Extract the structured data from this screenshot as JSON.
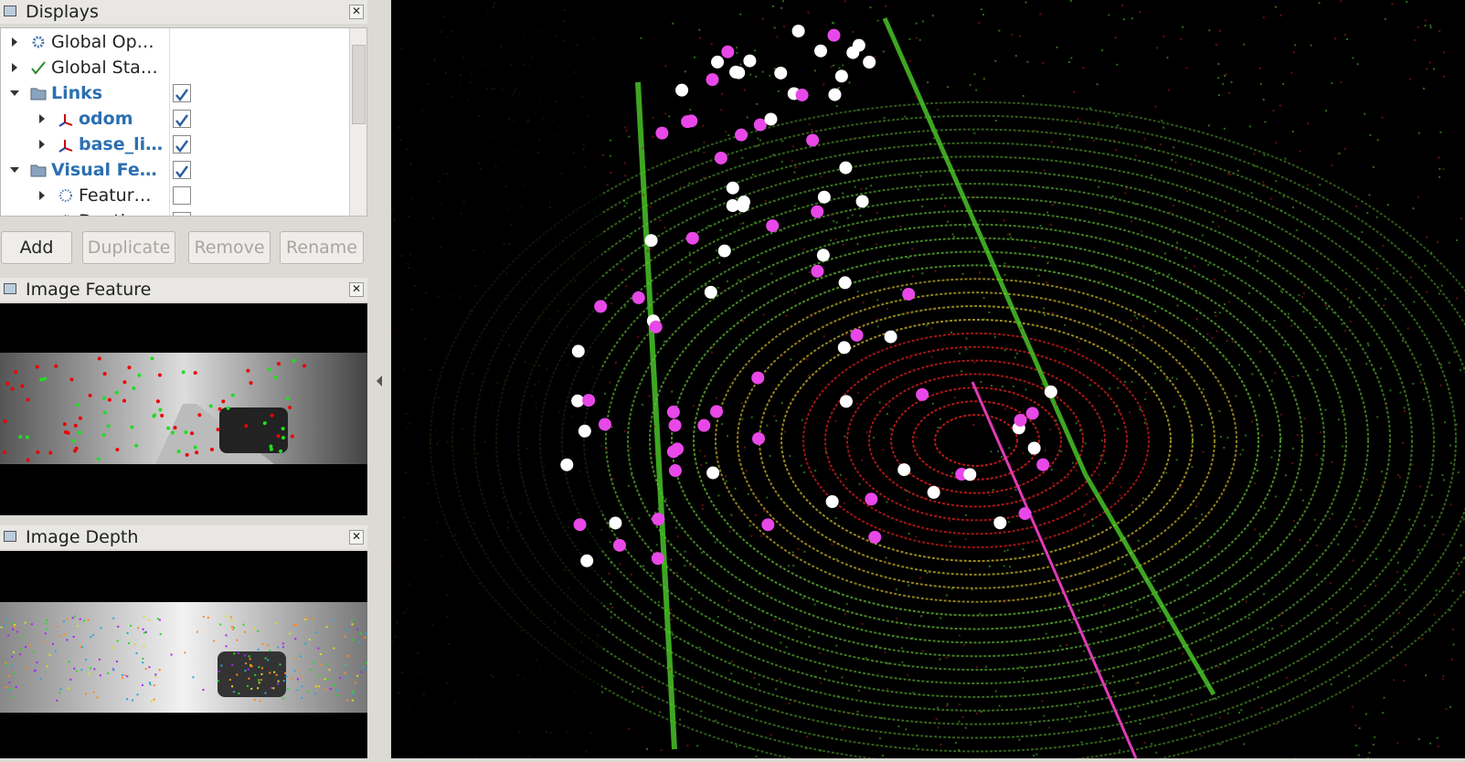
{
  "displays_panel": {
    "title": "Displays",
    "tree": [
      {
        "label": "Global Op…",
        "level": 0,
        "icon": "gear",
        "expanded": false,
        "bold": false,
        "checked": null
      },
      {
        "label": "Global Sta…",
        "level": 0,
        "icon": "check",
        "expanded": false,
        "bold": false,
        "checked": null
      },
      {
        "label": "Links",
        "level": 0,
        "icon": "folder",
        "expanded": true,
        "bold": true,
        "checked": true
      },
      {
        "label": "odom",
        "level": 1,
        "icon": "axes",
        "expanded": false,
        "bold": true,
        "checked": true
      },
      {
        "label": "base_li…",
        "level": 1,
        "icon": "axes",
        "expanded": false,
        "bold": true,
        "checked": true
      },
      {
        "label": "Visual Fe…",
        "level": 0,
        "icon": "folder",
        "expanded": true,
        "bold": true,
        "checked": true
      },
      {
        "label": "Featur…",
        "level": 1,
        "icon": "cloud",
        "expanded": false,
        "bold": false,
        "checked": false
      },
      {
        "label": "Depth",
        "level": 1,
        "icon": "cloud",
        "expanded": false,
        "bold": false,
        "checked": false
      }
    ],
    "buttons": [
      {
        "label": "Add",
        "enabled": true
      },
      {
        "label": "Duplicate",
        "enabled": false
      },
      {
        "label": "Remove",
        "enabled": false
      },
      {
        "label": "Rename",
        "enabled": false
      }
    ]
  },
  "image_panels": [
    {
      "title": "Image Feature"
    },
    {
      "title": "Image Depth"
    }
  ]
}
